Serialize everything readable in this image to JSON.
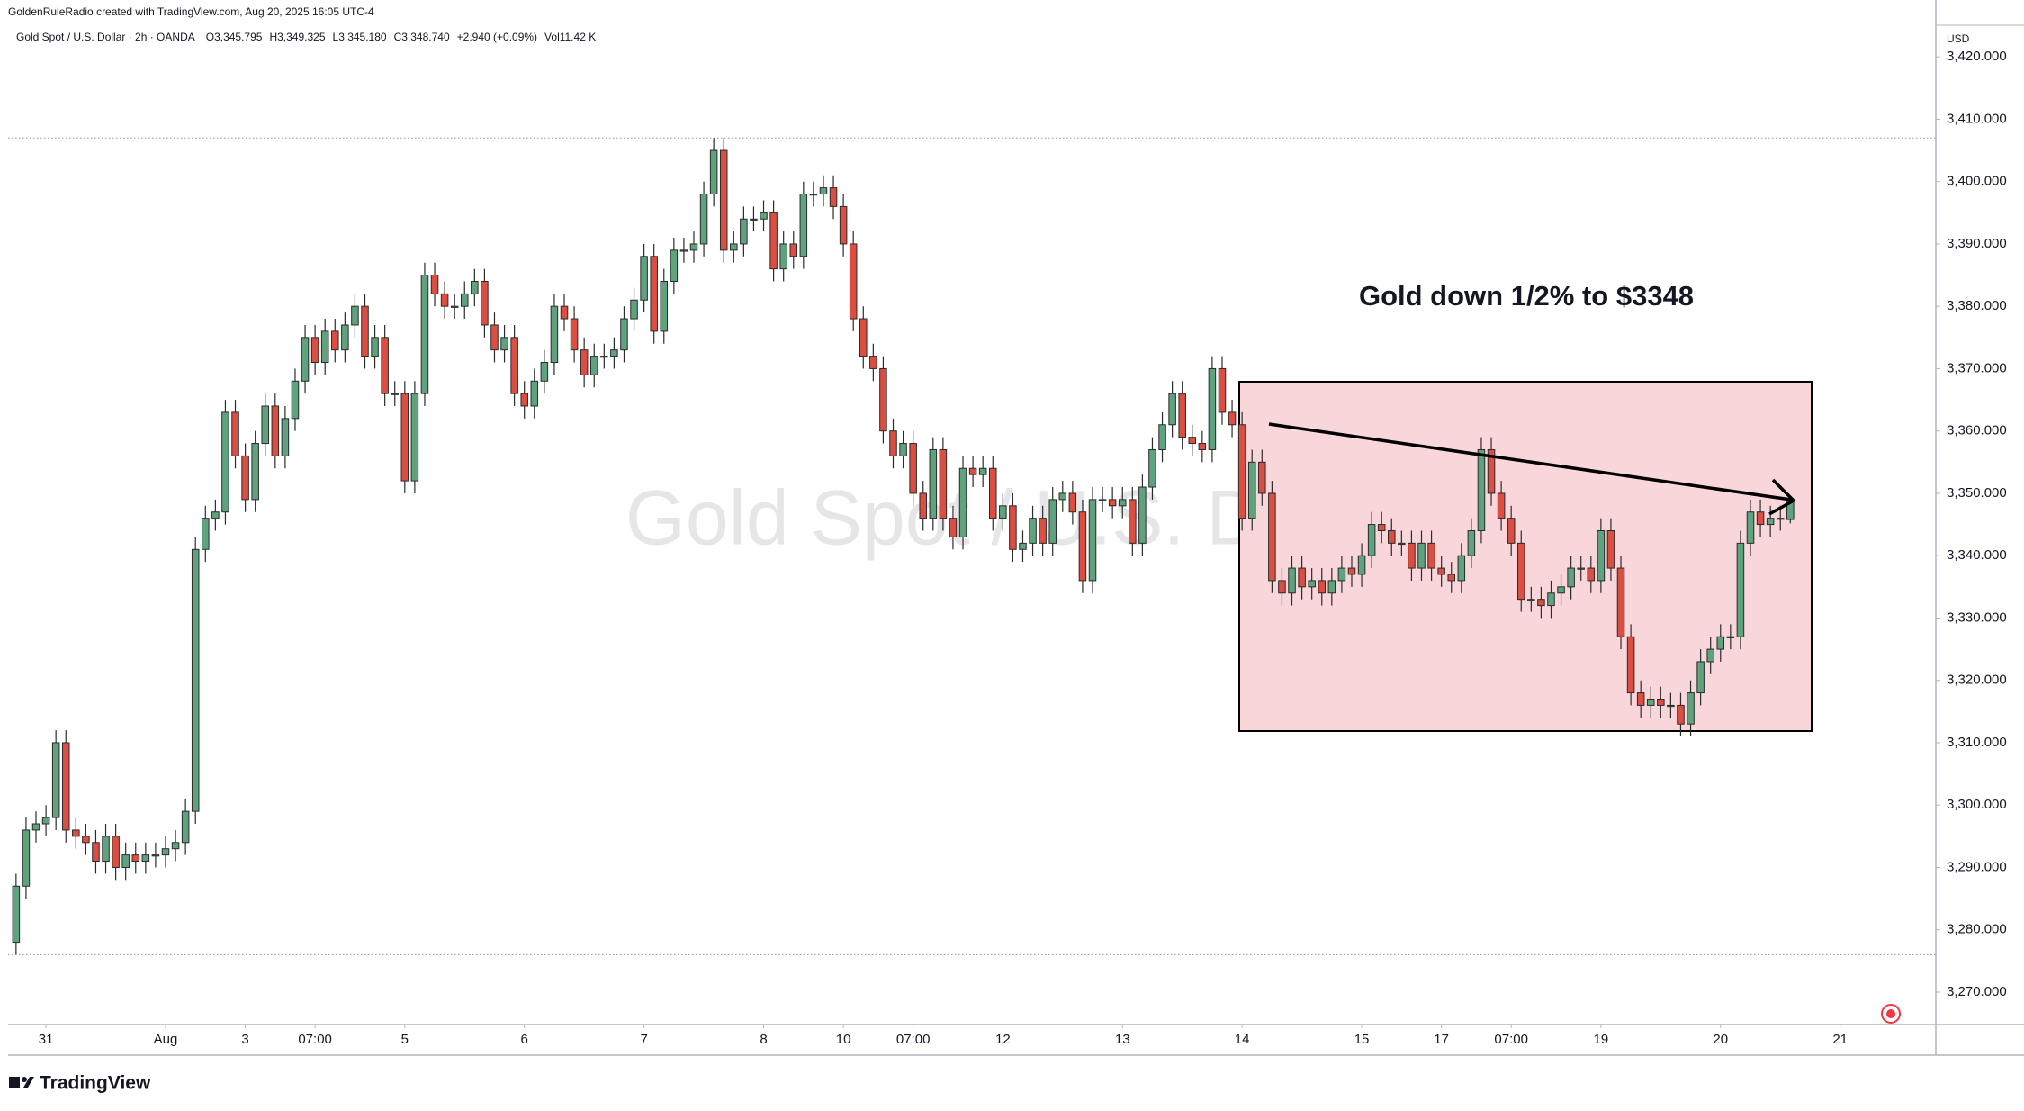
{
  "header": {
    "credit": "GoldenRuleRadio created with TradingView.com, Aug 20, 2025 16:05 UTC-4",
    "symbol": "Gold Spot / U.S. Dollar · 2h · OANDA",
    "ohlc_legend": [
      "O3,345.795",
      "H3,349.325",
      "L3,345.180",
      "C3,348.740",
      "+2.940 (+0.09%)",
      "Vol11.42 K"
    ]
  },
  "chart_data": {
    "type": "candlestick",
    "watermark": "Gold Spot / U.S. Dollar",
    "annotation": "Gold down 1/2% to $3348",
    "currency": "USD",
    "up_color": "#5fa37e",
    "down_color": "#dc4e41",
    "wick_color": "#2b2b2b",
    "grid": false,
    "ylim": [
      3264.8,
      3425.8
    ],
    "yticks": [
      {
        "value": 3270,
        "label": "3,270.000"
      },
      {
        "value": 3280,
        "label": "3,280.000"
      },
      {
        "value": 3290,
        "label": "3,290.000"
      },
      {
        "value": 3300,
        "label": "3,300.000"
      },
      {
        "value": 3310,
        "label": "3,310.000"
      },
      {
        "value": 3320,
        "label": "3,320.000"
      },
      {
        "value": 3330,
        "label": "3,330.000"
      },
      {
        "value": 3340,
        "label": "3,340.000"
      },
      {
        "value": 3350,
        "label": "3,350.000"
      },
      {
        "value": 3360,
        "label": "3,360.000"
      },
      {
        "value": 3370,
        "label": "3,370.000"
      },
      {
        "value": 3380,
        "label": "3,380.000"
      },
      {
        "value": 3390,
        "label": "3,390.000"
      },
      {
        "value": 3400,
        "label": "3,400.000"
      },
      {
        "value": 3410,
        "label": "3,410.000"
      },
      {
        "value": 3420,
        "label": "3,420.000"
      }
    ],
    "xlim": [
      -0.8,
      192.6
    ],
    "xticks": [
      {
        "value": 3,
        "label": "31"
      },
      {
        "value": 15,
        "label": "Aug"
      },
      {
        "value": 23,
        "label": "3"
      },
      {
        "value": 30,
        "label": "07:00"
      },
      {
        "value": 39,
        "label": "5"
      },
      {
        "value": 51,
        "label": "6"
      },
      {
        "value": 63,
        "label": "7"
      },
      {
        "value": 75,
        "label": "8"
      },
      {
        "value": 83,
        "label": "10"
      },
      {
        "value": 90,
        "label": "07:00"
      },
      {
        "value": 99,
        "label": "12"
      },
      {
        "value": 111,
        "label": "13"
      },
      {
        "value": 123,
        "label": "14"
      },
      {
        "value": 135,
        "label": "15"
      },
      {
        "value": 143,
        "label": "17"
      },
      {
        "value": 150,
        "label": "07:00"
      },
      {
        "value": 159,
        "label": "19"
      },
      {
        "value": 171,
        "label": "20"
      },
      {
        "value": 183,
        "label": "21"
      }
    ],
    "ohlc": [
      [
        3278,
        3289,
        3276,
        3287
      ],
      [
        3287,
        3298,
        3285,
        3296
      ],
      [
        3296,
        3299,
        3294,
        3297
      ],
      [
        3297,
        3300,
        3295,
        3298
      ],
      [
        3298,
        3312,
        3296,
        3310
      ],
      [
        3310,
        3312,
        3294,
        3296
      ],
      [
        3296,
        3298,
        3293,
        3295
      ],
      [
        3295,
        3297,
        3292,
        3294
      ],
      [
        3294,
        3296,
        3289,
        3291
      ],
      [
        3291,
        3297,
        3289,
        3295
      ],
      [
        3295,
        3297,
        3288,
        3290
      ],
      [
        3290,
        3294,
        3288,
        3292
      ],
      [
        3292,
        3294,
        3289,
        3291
      ],
      [
        3291,
        3294,
        3289,
        3292
      ],
      [
        3292,
        3294,
        3290,
        3292
      ],
      [
        3292,
        3295,
        3290,
        3293
      ],
      [
        3293,
        3296,
        3291,
        3294
      ],
      [
        3294,
        3301,
        3292,
        3299
      ],
      [
        3299,
        3343,
        3297,
        3341
      ],
      [
        3341,
        3348,
        3339,
        3346
      ],
      [
        3346,
        3349,
        3344,
        3347
      ],
      [
        3347,
        3365,
        3345,
        3363
      ],
      [
        3363,
        3365,
        3354,
        3356
      ],
      [
        3356,
        3358,
        3347,
        3349
      ],
      [
        3349,
        3360,
        3347,
        3358
      ],
      [
        3358,
        3366,
        3356,
        3364
      ],
      [
        3364,
        3366,
        3354,
        3356
      ],
      [
        3356,
        3364,
        3354,
        3362
      ],
      [
        3362,
        3370,
        3360,
        3368
      ],
      [
        3368,
        3377,
        3366,
        3375
      ],
      [
        3375,
        3377,
        3369,
        3371
      ],
      [
        3371,
        3378,
        3369,
        3376
      ],
      [
        3376,
        3378,
        3371,
        3373
      ],
      [
        3373,
        3379,
        3371,
        3377
      ],
      [
        3377,
        3382,
        3375,
        3380
      ],
      [
        3380,
        3382,
        3370,
        3372
      ],
      [
        3372,
        3377,
        3370,
        3375
      ],
      [
        3375,
        3377,
        3364,
        3366
      ],
      [
        3366,
        3368,
        3364,
        3366
      ],
      [
        3366,
        3368,
        3350,
        3352
      ],
      [
        3352,
        3368,
        3350,
        3366
      ],
      [
        3366,
        3387,
        3364,
        3385
      ],
      [
        3385,
        3387,
        3380,
        3382
      ],
      [
        3382,
        3384,
        3378,
        3380
      ],
      [
        3380,
        3382,
        3378,
        3380
      ],
      [
        3380,
        3384,
        3378,
        3382
      ],
      [
        3382,
        3386,
        3380,
        3384
      ],
      [
        3384,
        3386,
        3375,
        3377
      ],
      [
        3377,
        3379,
        3371,
        3373
      ],
      [
        3373,
        3377,
        3371,
        3375
      ],
      [
        3375,
        3377,
        3364,
        3366
      ],
      [
        3366,
        3368,
        3362,
        3364
      ],
      [
        3364,
        3370,
        3362,
        3368
      ],
      [
        3368,
        3373,
        3366,
        3371
      ],
      [
        3371,
        3382,
        3369,
        3380
      ],
      [
        3380,
        3382,
        3376,
        3378
      ],
      [
        3378,
        3380,
        3371,
        3373
      ],
      [
        3373,
        3375,
        3367,
        3369
      ],
      [
        3369,
        3374,
        3367,
        3372
      ],
      [
        3372,
        3374,
        3370,
        3372
      ],
      [
        3372,
        3375,
        3370,
        3373
      ],
      [
        3373,
        3380,
        3371,
        3378
      ],
      [
        3378,
        3383,
        3376,
        3381
      ],
      [
        3381,
        3390,
        3379,
        3388
      ],
      [
        3388,
        3390,
        3374,
        3376
      ],
      [
        3376,
        3386,
        3374,
        3384
      ],
      [
        3384,
        3391,
        3382,
        3389
      ],
      [
        3389,
        3391,
        3387,
        3389
      ],
      [
        3389,
        3392,
        3387,
        3390
      ],
      [
        3390,
        3400,
        3388,
        3398
      ],
      [
        3398,
        3407,
        3396,
        3405
      ],
      [
        3405,
        3407,
        3387,
        3389
      ],
      [
        3389,
        3392,
        3387,
        3390
      ],
      [
        3390,
        3396,
        3388,
        3394
      ],
      [
        3394,
        3396,
        3392,
        3394
      ],
      [
        3394,
        3397,
        3392,
        3395
      ],
      [
        3395,
        3397,
        3384,
        3386
      ],
      [
        3386,
        3392,
        3384,
        3390
      ],
      [
        3390,
        3392,
        3386,
        3388
      ],
      [
        3388,
        3400,
        3386,
        3398
      ],
      [
        3398,
        3400,
        3396,
        3398
      ],
      [
        3398,
        3401,
        3396,
        3399
      ],
      [
        3399,
        3401,
        3394,
        3396
      ],
      [
        3396,
        3398,
        3388,
        3390
      ],
      [
        3390,
        3392,
        3376,
        3378
      ],
      [
        3378,
        3380,
        3370,
        3372
      ],
      [
        3372,
        3374,
        3368,
        3370
      ],
      [
        3370,
        3372,
        3358,
        3360
      ],
      [
        3360,
        3362,
        3354,
        3356
      ],
      [
        3356,
        3360,
        3354,
        3358
      ],
      [
        3358,
        3360,
        3348,
        3350
      ],
      [
        3350,
        3352,
        3344,
        3346
      ],
      [
        3346,
        3359,
        3344,
        3357
      ],
      [
        3357,
        3359,
        3344,
        3346
      ],
      [
        3346,
        3348,
        3341,
        3343
      ],
      [
        3343,
        3356,
        3341,
        3354
      ],
      [
        3354,
        3356,
        3351,
        3353
      ],
      [
        3353,
        3356,
        3351,
        3354
      ],
      [
        3354,
        3356,
        3344,
        3346
      ],
      [
        3346,
        3350,
        3344,
        3348
      ],
      [
        3348,
        3350,
        3339,
        3341
      ],
      [
        3341,
        3344,
        3339,
        3342
      ],
      [
        3342,
        3348,
        3340,
        3346
      ],
      [
        3346,
        3348,
        3340,
        3342
      ],
      [
        3342,
        3351,
        3340,
        3349
      ],
      [
        3349,
        3352,
        3347,
        3350
      ],
      [
        3350,
        3352,
        3345,
        3347
      ],
      [
        3347,
        3349,
        3334,
        3336
      ],
      [
        3336,
        3351,
        3334,
        3349
      ],
      [
        3349,
        3351,
        3347,
        3349
      ],
      [
        3349,
        3351,
        3346,
        3348
      ],
      [
        3348,
        3351,
        3346,
        3349
      ],
      [
        3349,
        3351,
        3340,
        3342
      ],
      [
        3342,
        3353,
        3340,
        3351
      ],
      [
        3351,
        3359,
        3349,
        3357
      ],
      [
        3357,
        3363,
        3355,
        3361
      ],
      [
        3361,
        3368,
        3359,
        3366
      ],
      [
        3366,
        3368,
        3357,
        3359
      ],
      [
        3359,
        3361,
        3356,
        3358
      ],
      [
        3358,
        3360,
        3355,
        3357
      ],
      [
        3357,
        3372,
        3355,
        3370
      ],
      [
        3370,
        3372,
        3361,
        3363
      ],
      [
        3363,
        3365,
        3359,
        3361
      ],
      [
        3361,
        3363,
        3344,
        3346
      ],
      [
        3346,
        3357,
        3344,
        3355
      ],
      [
        3355,
        3357,
        3348,
        3350
      ],
      [
        3350,
        3352,
        3334,
        3336
      ],
      [
        3336,
        3338,
        3332,
        3334
      ],
      [
        3334,
        3340,
        3332,
        3338
      ],
      [
        3338,
        3340,
        3333,
        3335
      ],
      [
        3335,
        3338,
        3333,
        3336
      ],
      [
        3336,
        3338,
        3332,
        3334
      ],
      [
        3334,
        3338,
        3332,
        3336
      ],
      [
        3336,
        3340,
        3334,
        3338
      ],
      [
        3338,
        3340,
        3335,
        3337
      ],
      [
        3337,
        3342,
        3335,
        3340
      ],
      [
        3340,
        3347,
        3338,
        3345
      ],
      [
        3345,
        3347,
        3342,
        3344
      ],
      [
        3344,
        3346,
        3340,
        3342
      ],
      [
        3342,
        3344,
        3340,
        3342
      ],
      [
        3342,
        3344,
        3336,
        3338
      ],
      [
        3338,
        3344,
        3336,
        3342
      ],
      [
        3342,
        3344,
        3336,
        3338
      ],
      [
        3338,
        3340,
        3335,
        3337
      ],
      [
        3337,
        3339,
        3334,
        3336
      ],
      [
        3336,
        3342,
        3334,
        3340
      ],
      [
        3340,
        3346,
        3338,
        3344
      ],
      [
        3344,
        3359,
        3342,
        3357
      ],
      [
        3357,
        3359,
        3348,
        3350
      ],
      [
        3350,
        3352,
        3344,
        3346
      ],
      [
        3346,
        3348,
        3340,
        3342
      ],
      [
        3342,
        3344,
        3331,
        3333
      ],
      [
        3333,
        3335,
        3331,
        3333
      ],
      [
        3333,
        3335,
        3330,
        3332
      ],
      [
        3332,
        3336,
        3330,
        3334
      ],
      [
        3334,
        3337,
        3332,
        3335
      ],
      [
        3335,
        3340,
        3333,
        3338
      ],
      [
        3338,
        3340,
        3336,
        3338
      ],
      [
        3338,
        3340,
        3334,
        3336
      ],
      [
        3336,
        3346,
        3334,
        3344
      ],
      [
        3344,
        3346,
        3336,
        3338
      ],
      [
        3338,
        3340,
        3325,
        3327
      ],
      [
        3327,
        3329,
        3316,
        3318
      ],
      [
        3318,
        3320,
        3314,
        3316
      ],
      [
        3316,
        3319,
        3314,
        3317
      ],
      [
        3317,
        3319,
        3314,
        3316
      ],
      [
        3316,
        3318,
        3314,
        3316
      ],
      [
        3316,
        3318,
        3311,
        3313
      ],
      [
        3313,
        3320,
        3311,
        3318
      ],
      [
        3318,
        3325,
        3316,
        3323
      ],
      [
        3323,
        3327,
        3321,
        3325
      ],
      [
        3325,
        3329,
        3323,
        3327
      ],
      [
        3327,
        3329,
        3325,
        3327
      ],
      [
        3327,
        3344,
        3325,
        3342
      ],
      [
        3342,
        3349,
        3340,
        3347
      ],
      [
        3347,
        3349,
        3343,
        3345
      ],
      [
        3345,
        3348,
        3343,
        3346
      ],
      [
        3346,
        3348,
        3344,
        3346
      ],
      [
        3345.795,
        3349.325,
        3345.18,
        3348.74
      ]
    ]
  },
  "footer": {
    "brand": "TradingView"
  }
}
